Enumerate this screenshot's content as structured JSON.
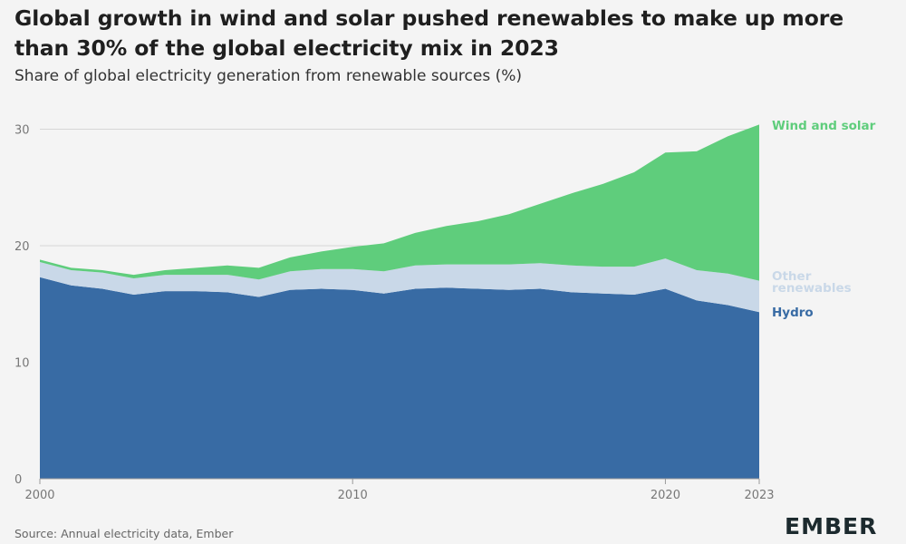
{
  "title": "Global growth in wind and solar pushed renewables to make up more than 30% of the global electricity mix in 2023",
  "subtitle": "Share of global electricity generation from renewable sources (%)",
  "source": "Source: Annual electricity data, Ember",
  "logo": "EMBER",
  "colors": {
    "hydro": "#386ba4",
    "other": "#c9d8e8",
    "wind_solar": "#5fcd7c",
    "background": "#f4f4f4",
    "grid": "#d6d6d6",
    "axis_text": "#777777"
  },
  "chart_data": {
    "type": "area",
    "stacked": true,
    "xlim": [
      2000,
      2023
    ],
    "ylim": [
      0,
      31
    ],
    "x_ticks": [
      2000,
      2010,
      2020,
      2023
    ],
    "y_ticks": [
      0,
      10,
      20,
      30
    ],
    "grid": "horizontal",
    "legend_placement": "right (inline labels)",
    "x": [
      2000,
      2001,
      2002,
      2003,
      2004,
      2005,
      2006,
      2007,
      2008,
      2009,
      2010,
      2011,
      2012,
      2013,
      2014,
      2015,
      2016,
      2017,
      2018,
      2019,
      2020,
      2021,
      2022,
      2023
    ],
    "series": [
      {
        "name": "Hydro",
        "color": "#386ba4",
        "values": [
          17.3,
          16.6,
          16.3,
          15.8,
          16.1,
          16.1,
          16.0,
          15.6,
          16.2,
          16.3,
          16.2,
          15.9,
          16.3,
          16.4,
          16.3,
          16.2,
          16.3,
          16.0,
          15.9,
          15.8,
          16.3,
          15.3,
          14.9,
          14.3
        ]
      },
      {
        "name": "Other renewables",
        "color": "#c9d8e8",
        "values": [
          1.3,
          1.3,
          1.4,
          1.4,
          1.4,
          1.4,
          1.5,
          1.5,
          1.6,
          1.7,
          1.8,
          1.9,
          2.0,
          2.0,
          2.1,
          2.2,
          2.2,
          2.3,
          2.3,
          2.4,
          2.6,
          2.6,
          2.7,
          2.7
        ]
      },
      {
        "name": "Wind and solar",
        "color": "#5fcd7c",
        "values": [
          0.2,
          0.2,
          0.2,
          0.3,
          0.4,
          0.6,
          0.8,
          1.0,
          1.2,
          1.5,
          1.9,
          2.4,
          2.8,
          3.3,
          3.7,
          4.3,
          5.1,
          6.2,
          7.1,
          8.1,
          9.1,
          10.2,
          11.8,
          13.4
        ]
      }
    ],
    "series_labels": [
      {
        "text": "Wind and solar",
        "color": "#5fcd7c"
      },
      {
        "text": "Other",
        "color": "#c9d8e8"
      },
      {
        "text": "renewables",
        "color": "#c9d8e8"
      },
      {
        "text": "Hydro",
        "color": "#386ba4"
      }
    ]
  }
}
